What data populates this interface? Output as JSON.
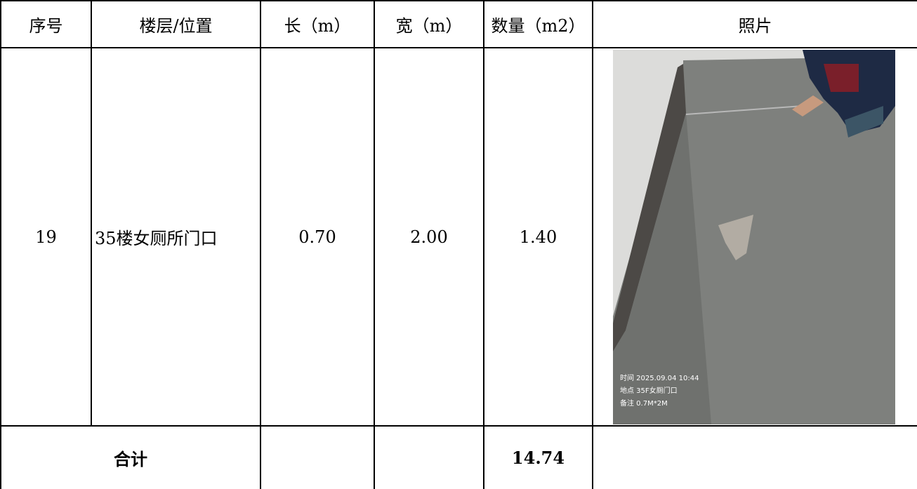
{
  "header": [
    "序号",
    "楼层/位置",
    "长（m）",
    "宽（m）",
    "数量（m2）",
    "照片"
  ],
  "table": {
    "rows": [
      [
        "19",
        "35楼女厕所门口",
        "0.70",
        "2.00",
        "1.40"
      ]
    ]
  },
  "photo": {
    "caption": [
      "时间 2025.09.04 10:44",
      "地点 35F女厕门口",
      "备注 0.7M*2M"
    ]
  },
  "total": {
    "label": "合计",
    "value": "14.74"
  }
}
